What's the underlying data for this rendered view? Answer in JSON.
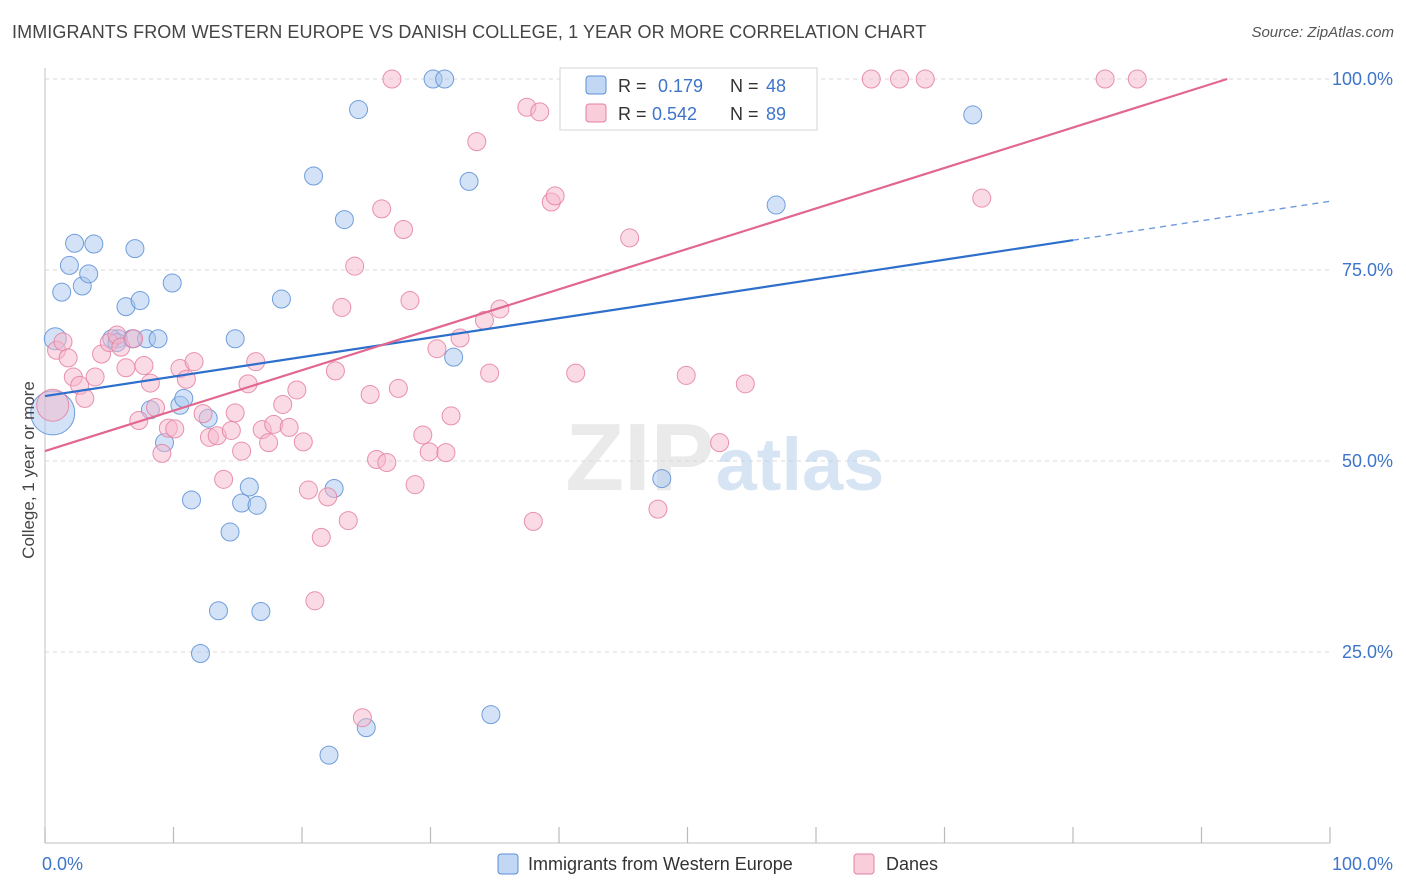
{
  "title": "IMMIGRANTS FROM WESTERN EUROPE VS DANISH COLLEGE, 1 YEAR OR MORE CORRELATION CHART",
  "source": "Source: ZipAtlas.com",
  "watermark": {
    "zip": "ZIP",
    "atlas": "atlas"
  },
  "colors": {
    "blue_fill": "#a8c6ee",
    "blue_stroke": "#5b8fd6",
    "blue_line": "#2f6fcc",
    "pink_fill": "#f6b8cb",
    "pink_stroke": "#e57fa1",
    "pink_line": "#e2678f",
    "axis_value_text": "#3e74c9",
    "grid": "#d8d8d8"
  },
  "legend_stats": [
    {
      "series": "Immigrants from Western Europe",
      "r_label": "R =",
      "r_value": "0.179",
      "n_label": "N =",
      "n_value": "48"
    },
    {
      "series": "Danes",
      "r_label": "R =",
      "r_value": "0.542",
      "n_label": "N =",
      "n_value": "89"
    }
  ],
  "chart_data": {
    "type": "scatter",
    "title": "IMMIGRANTS FROM WESTERN EUROPE VS DANISH COLLEGE, 1 YEAR OR MORE CORRELATION CHART",
    "xlabel": "",
    "ylabel": "College, 1 year or more",
    "xlim": [
      0,
      100
    ],
    "ylim": [
      0,
      100
    ],
    "x_tick_labels": [
      "0.0%",
      "100.0%"
    ],
    "y_tick_labels": [
      "25.0%",
      "50.0%",
      "75.0%",
      "100.0%"
    ],
    "y_tick_values": [
      25,
      50,
      75,
      100
    ],
    "grid": true,
    "legend": "bottom-center",
    "series": [
      {
        "name": "Immigrants from Western Europe",
        "color": "#a8c6ee",
        "trend": {
          "x": [
            0,
            80
          ],
          "y": [
            58.5,
            78.9
          ],
          "dashed_to": [
            100,
            84
          ]
        },
        "points": [
          [
            0.6,
            56.3,
            22
          ],
          [
            0.8,
            66,
            11
          ],
          [
            1.3,
            72.1,
            9
          ],
          [
            1.9,
            75.6,
            9
          ],
          [
            2.3,
            78.5,
            9
          ],
          [
            2.9,
            72.9,
            9
          ],
          [
            3.4,
            74.5,
            9
          ],
          [
            3.8,
            78.4,
            9
          ],
          [
            5.7,
            66,
            9
          ],
          [
            5.2,
            66,
            9
          ],
          [
            6.3,
            70.2,
            9
          ],
          [
            5.6,
            65.5,
            9
          ],
          [
            6.8,
            66,
            9
          ],
          [
            7.0,
            77.8,
            9
          ],
          [
            7.4,
            71,
            9
          ],
          [
            7.9,
            66,
            9
          ],
          [
            8.2,
            56.7,
            9
          ],
          [
            8.8,
            66,
            9
          ],
          [
            9.3,
            52.4,
            9
          ],
          [
            9.9,
            73.3,
            9
          ],
          [
            10.5,
            57.3,
            9
          ],
          [
            10.8,
            58.2,
            9
          ],
          [
            11.4,
            44.9,
            9
          ],
          [
            12.1,
            24.8,
            9
          ],
          [
            12.7,
            55.6,
            9
          ],
          [
            13.5,
            30.4,
            9
          ],
          [
            14.4,
            40.7,
            9
          ],
          [
            14.8,
            66,
            9
          ],
          [
            15.3,
            44.5,
            9
          ],
          [
            15.9,
            46.6,
            9
          ],
          [
            16.5,
            44.2,
            9
          ],
          [
            16.8,
            30.3,
            9
          ],
          [
            18.4,
            71.2,
            9
          ],
          [
            20.9,
            87.3,
            9
          ],
          [
            22.5,
            46.4,
            9
          ],
          [
            23.3,
            81.6,
            9
          ],
          [
            24.4,
            96,
            9
          ],
          [
            25.0,
            15.1,
            9
          ],
          [
            22.1,
            11.5,
            9
          ],
          [
            30.2,
            100,
            9
          ],
          [
            31.1,
            100,
            9
          ],
          [
            31.8,
            63.6,
            9
          ],
          [
            33.0,
            86.6,
            9
          ],
          [
            34.7,
            16.8,
            9
          ],
          [
            48.0,
            47.7,
            9
          ],
          [
            57.1,
            100,
            9
          ],
          [
            56.9,
            83.5,
            9
          ],
          [
            72.2,
            95.3,
            9
          ]
        ]
      },
      {
        "name": "Danes",
        "color": "#f6b8cb",
        "trend": {
          "x": [
            0,
            92
          ],
          "y": [
            51.3,
            100
          ]
        },
        "points": [
          [
            0.6,
            57.3,
            16
          ],
          [
            0.9,
            64.5,
            9
          ],
          [
            1.4,
            65.6,
            9
          ],
          [
            1.8,
            63.5,
            9
          ],
          [
            2.2,
            61,
            9
          ],
          [
            2.7,
            59.9,
            9
          ],
          [
            3.1,
            58.2,
            9
          ],
          [
            3.9,
            61,
            9
          ],
          [
            4.4,
            64,
            9
          ],
          [
            5.0,
            65.5,
            9
          ],
          [
            5.6,
            66.5,
            9
          ],
          [
            5.9,
            64.9,
            9
          ],
          [
            6.3,
            62.2,
            9
          ],
          [
            6.9,
            66,
            9
          ],
          [
            7.3,
            55.3,
            9
          ],
          [
            7.7,
            62.5,
            9
          ],
          [
            8.2,
            60.2,
            9
          ],
          [
            8.6,
            57,
            9
          ],
          [
            9.1,
            51,
            9
          ],
          [
            9.6,
            54.3,
            9
          ],
          [
            10.1,
            54.2,
            9
          ],
          [
            10.5,
            62.1,
            9
          ],
          [
            11.0,
            60.7,
            9
          ],
          [
            11.6,
            63,
            9
          ],
          [
            12.3,
            56.2,
            9
          ],
          [
            12.8,
            53.1,
            9
          ],
          [
            13.4,
            53.3,
            9
          ],
          [
            13.9,
            47.6,
            9
          ],
          [
            14.5,
            54,
            9
          ],
          [
            14.8,
            56.3,
            9
          ],
          [
            15.3,
            51.3,
            9
          ],
          [
            15.8,
            60.1,
            9
          ],
          [
            16.4,
            63,
            9
          ],
          [
            16.9,
            54.1,
            9
          ],
          [
            17.4,
            52.4,
            9
          ],
          [
            17.8,
            54.8,
            9
          ],
          [
            18.5,
            57.4,
            9
          ],
          [
            19.0,
            54.4,
            9
          ],
          [
            19.6,
            59.3,
            9
          ],
          [
            20.1,
            52.5,
            9
          ],
          [
            20.5,
            46.2,
            9
          ],
          [
            21.0,
            31.7,
            9
          ],
          [
            21.5,
            40,
            9
          ],
          [
            22.0,
            45.3,
            9
          ],
          [
            22.6,
            61.8,
            9
          ],
          [
            23.1,
            70.1,
            9
          ],
          [
            23.6,
            42.2,
            9
          ],
          [
            24.1,
            75.5,
            9
          ],
          [
            24.7,
            16.4,
            9
          ],
          [
            25.3,
            58.7,
            9
          ],
          [
            25.8,
            50.2,
            9
          ],
          [
            26.2,
            83,
            9
          ],
          [
            26.6,
            49.8,
            9
          ],
          [
            27.0,
            100,
            9
          ],
          [
            27.5,
            59.5,
            9
          ],
          [
            27.9,
            80.3,
            9
          ],
          [
            28.4,
            71,
            9
          ],
          [
            28.8,
            46.9,
            9
          ],
          [
            29.4,
            53.4,
            9
          ],
          [
            29.9,
            51.2,
            9
          ],
          [
            30.5,
            64.7,
            9
          ],
          [
            31.2,
            51.1,
            9
          ],
          [
            31.6,
            55.9,
            9
          ],
          [
            32.3,
            66.1,
            9
          ],
          [
            33.6,
            91.8,
            9
          ],
          [
            34.2,
            68.4,
            9
          ],
          [
            34.6,
            61.5,
            9
          ],
          [
            35.4,
            69.9,
            9
          ],
          [
            37.5,
            96.3,
            9
          ],
          [
            38.5,
            95.7,
            9
          ],
          [
            38.0,
            42.1,
            9
          ],
          [
            39.4,
            83.9,
            9
          ],
          [
            39.7,
            84.7,
            9
          ],
          [
            41.3,
            61.5,
            9
          ],
          [
            43.9,
            100,
            9
          ],
          [
            44.2,
            100,
            9
          ],
          [
            45.5,
            79.2,
            9
          ],
          [
            47.7,
            43.7,
            9
          ],
          [
            49.9,
            61.2,
            9
          ],
          [
            52.5,
            52.4,
            9
          ],
          [
            54.5,
            60.1,
            9
          ],
          [
            56.0,
            100,
            9
          ],
          [
            57.0,
            100,
            9
          ],
          [
            64.3,
            100,
            9
          ],
          [
            66.5,
            100,
            9
          ],
          [
            68.5,
            100,
            9
          ],
          [
            72.9,
            84.4,
            9
          ],
          [
            82.5,
            100,
            9
          ],
          [
            85.0,
            100,
            9
          ]
        ]
      }
    ]
  }
}
